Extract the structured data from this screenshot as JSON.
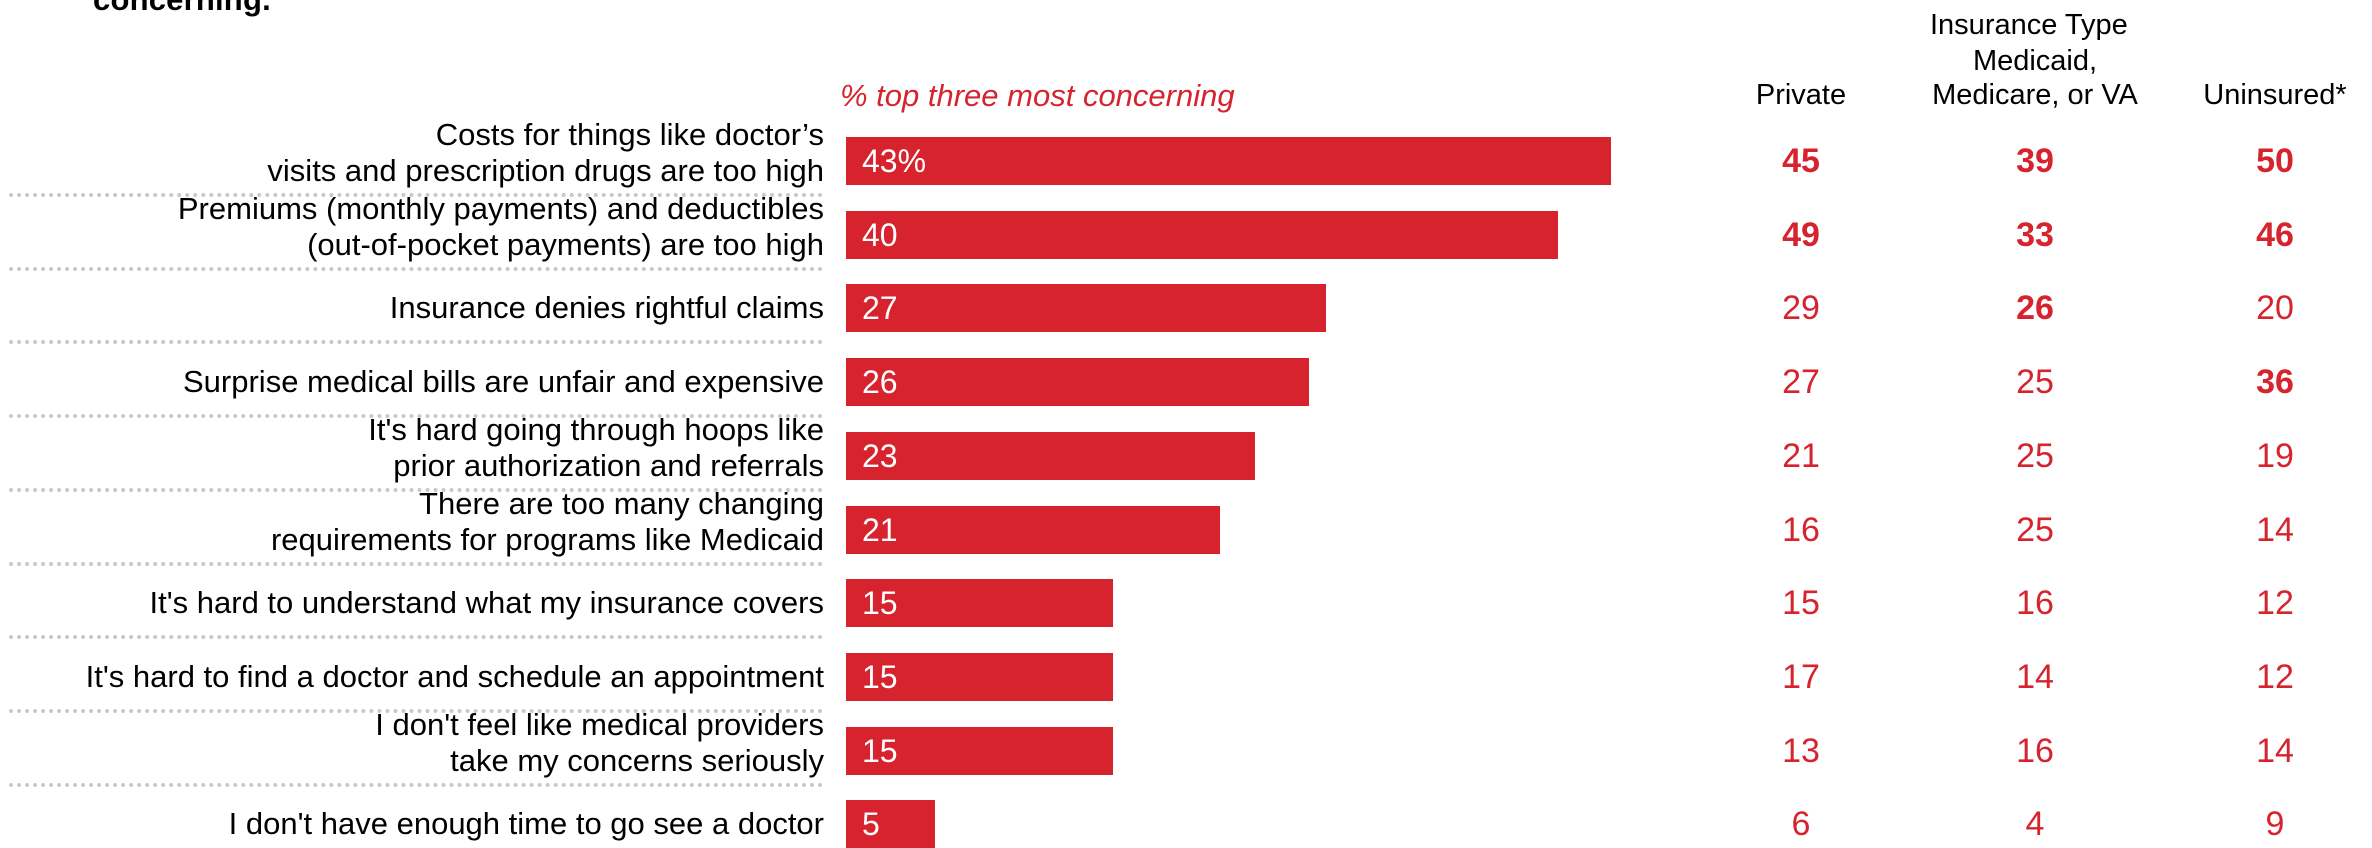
{
  "title_fragment": "concerning.",
  "chart_data": {
    "type": "bar",
    "orientation": "horizontal",
    "value_header": "% top three most concerning",
    "column_group_header": "Insurance Type",
    "columns": [
      "Private",
      "Medicaid, Medicare, or VA",
      "Uninsured*"
    ],
    "categories": [
      [
        "Costs for things like doctor’s",
        "visits and prescription drugs are too high"
      ],
      [
        "Premiums (monthly payments) and deductibles",
        "(out-of-pocket payments) are too high"
      ],
      [
        "Insurance denies rightful claims"
      ],
      [
        "Surprise medical bills are unfair and expensive"
      ],
      [
        "It's hard going through hoops like",
        "prior authorization and referrals"
      ],
      [
        "There are too many changing",
        "requirements for programs like Medicaid"
      ],
      [
        "It's hard to understand what my insurance covers"
      ],
      [
        "It's hard to find a doctor and schedule an appointment"
      ],
      [
        "I don't feel like medical providers",
        "take my concerns seriously"
      ],
      [
        "I don't have enough time to go see a doctor"
      ]
    ],
    "values": [
      43,
      40,
      27,
      26,
      23,
      21,
      15,
      15,
      15,
      5
    ],
    "value_labels": [
      "43%",
      "40",
      "27",
      "26",
      "23",
      "21",
      "15",
      "15",
      "15",
      "5"
    ],
    "xlim": [
      0,
      43
    ],
    "table": [
      [
        {
          "v": "45",
          "b": true
        },
        {
          "v": "39",
          "b": true
        },
        {
          "v": "50",
          "b": true
        }
      ],
      [
        {
          "v": "49",
          "b": true
        },
        {
          "v": "33",
          "b": true
        },
        {
          "v": "46",
          "b": true
        }
      ],
      [
        {
          "v": "29",
          "b": false
        },
        {
          "v": "26",
          "b": true
        },
        {
          "v": "20",
          "b": false
        }
      ],
      [
        {
          "v": "27",
          "b": false
        },
        {
          "v": "25",
          "b": false
        },
        {
          "v": "36",
          "b": true
        }
      ],
      [
        {
          "v": "21",
          "b": false
        },
        {
          "v": "25",
          "b": false
        },
        {
          "v": "19",
          "b": false
        }
      ],
      [
        {
          "v": "16",
          "b": false
        },
        {
          "v": "25",
          "b": false
        },
        {
          "v": "14",
          "b": false
        }
      ],
      [
        {
          "v": "15",
          "b": false
        },
        {
          "v": "16",
          "b": false
        },
        {
          "v": "12",
          "b": false
        }
      ],
      [
        {
          "v": "17",
          "b": false
        },
        {
          "v": "14",
          "b": false
        },
        {
          "v": "12",
          "b": false
        }
      ],
      [
        {
          "v": "13",
          "b": false
        },
        {
          "v": "16",
          "b": false
        },
        {
          "v": "14",
          "b": false
        }
      ],
      [
        {
          "v": "6",
          "b": false
        },
        {
          "v": "4",
          "b": false
        },
        {
          "v": "9",
          "b": false
        }
      ]
    ],
    "colors": {
      "bar": "#d6232d",
      "bar_text": "#ffffff",
      "table_text": "#d6232d",
      "divider": "#c9c9c9"
    },
    "grid": false,
    "legend": "none"
  }
}
